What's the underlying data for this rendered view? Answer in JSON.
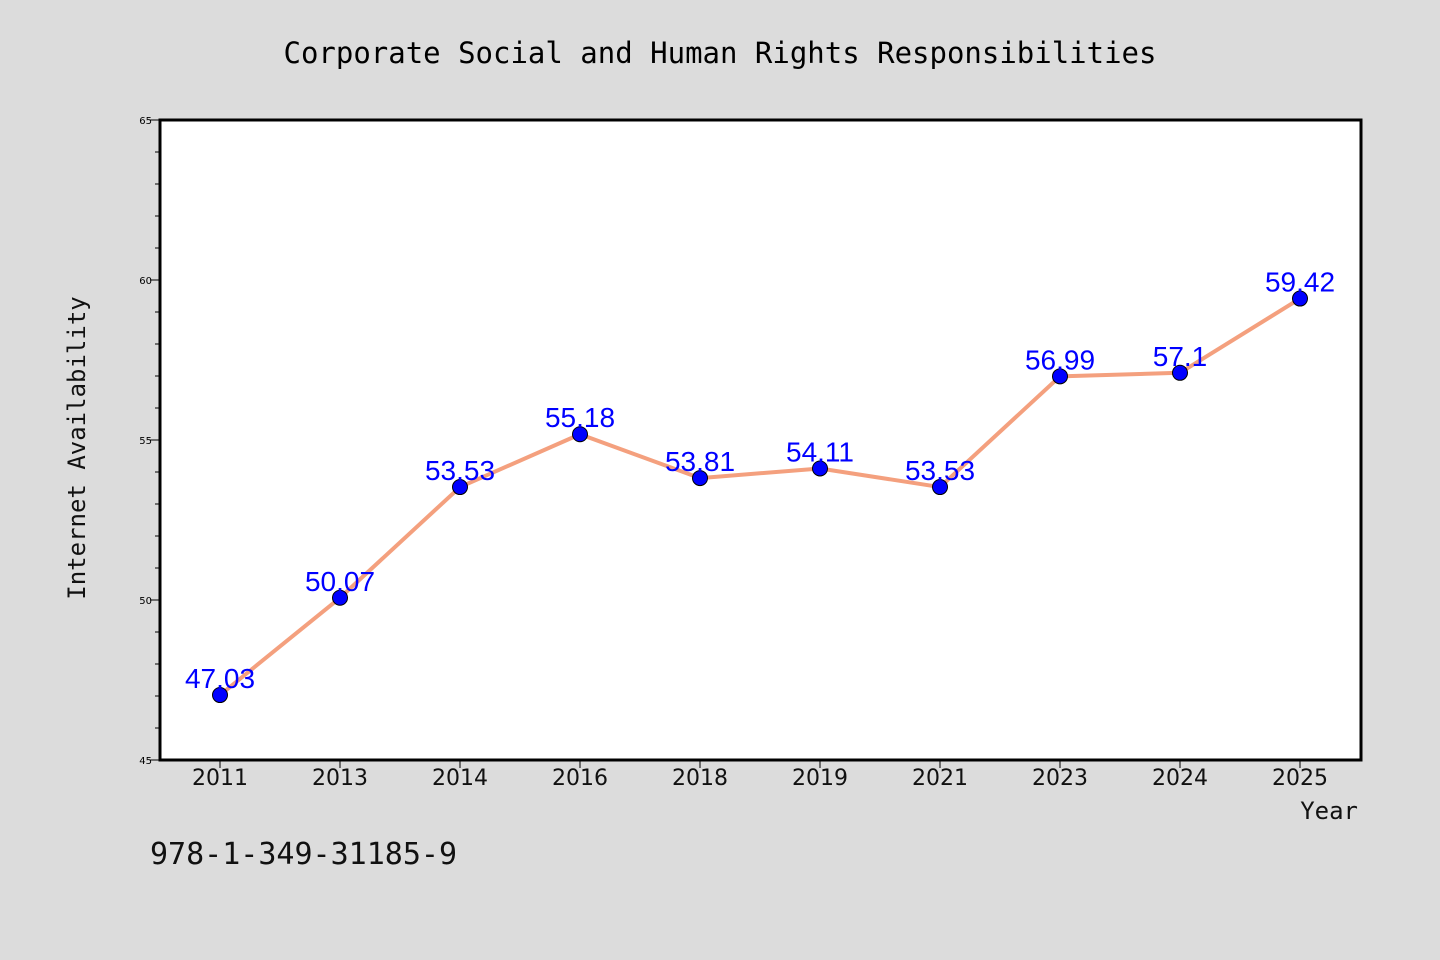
{
  "chart_data": {
    "type": "line",
    "title": "Corporate Social and Human Rights Responsibilities",
    "xlabel": "Year",
    "ylabel": "Internet Availability",
    "categories": [
      "2011",
      "2013",
      "2014",
      "2016",
      "2018",
      "2019",
      "2021",
      "2023",
      "2024",
      "2025"
    ],
    "series": [
      {
        "values": [
          47.03,
          50.07,
          53.53,
          55.18,
          53.81,
          54.11,
          53.53,
          56.99,
          57.1,
          59.42
        ],
        "labels": [
          "47.03",
          "50.07",
          "53.53",
          "55.18",
          "53.81",
          "54.11",
          "53.53",
          "56.99",
          "57.1",
          "59.42"
        ],
        "line_color": "#f4a07e",
        "marker_color": "#0000ff"
      }
    ],
    "ylim": [
      45,
      65
    ],
    "yticks": [
      "45",
      "50",
      "55",
      "60",
      "65"
    ],
    "grid": false,
    "legend": "none"
  },
  "footnote": "978-1-349-31185-9",
  "colors": {
    "background": "#dcdcdc",
    "plot_area": "#ffffff",
    "data_label": "#0000ff"
  }
}
